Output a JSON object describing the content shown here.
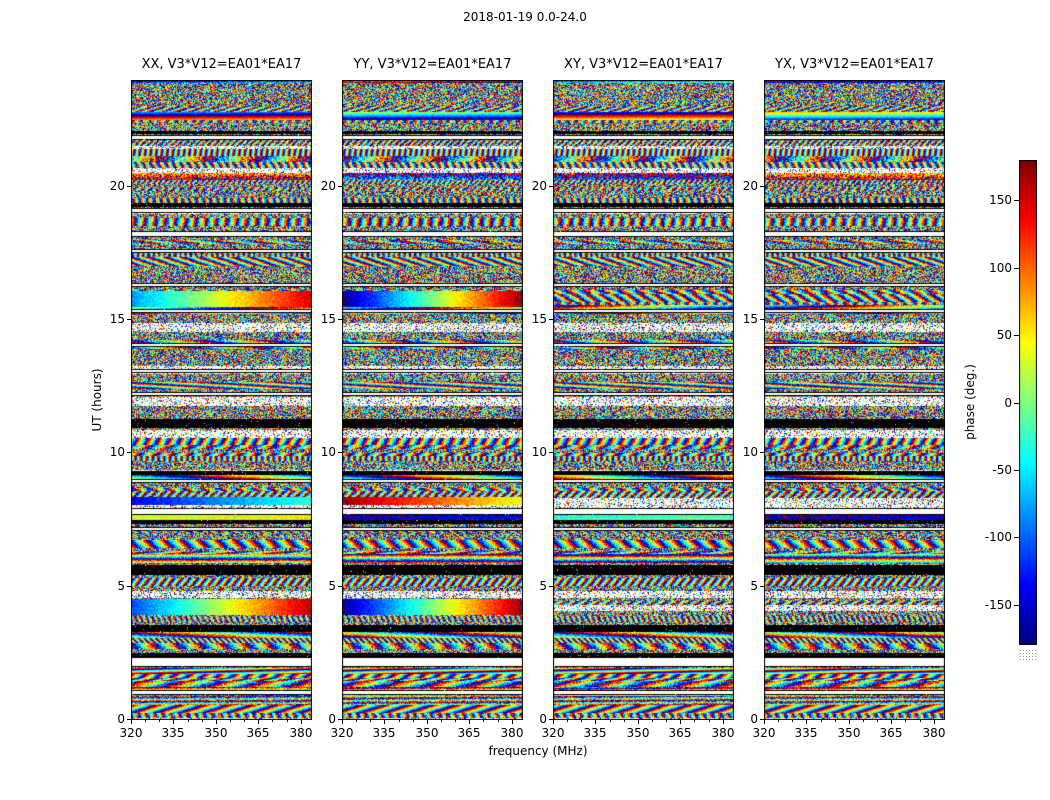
{
  "chart_data": {
    "type": "heatmap",
    "title": "2018-01-19 0.0-24.0",
    "xlabel": "frequency (MHz)",
    "ylabel": "UT (hours)",
    "value_kind": "interferometric visibility phase per time/frequency pixel, wrapped to [-180,180] deg; white rows = flagged gaps, black rows = dark flagged bands",
    "panels": [
      {
        "title": "XX, V3*V12=EA01*EA17",
        "seed": 11
      },
      {
        "title": "YY, V3*V12=EA01*EA17",
        "seed": 29
      },
      {
        "title": "XY, V3*V12=EA01*EA17",
        "seed": 47
      },
      {
        "title": "YX, V3*V12=EA01*EA17",
        "seed": 68
      }
    ],
    "x_axis": {
      "min": 320,
      "max": 384,
      "major_ticks": [
        320,
        335,
        350,
        365,
        380
      ],
      "minor_step": 5
    },
    "y_axis": {
      "min": 0,
      "max": 24,
      "major_ticks": [
        0,
        5,
        10,
        15,
        20
      ]
    },
    "colorbar": {
      "label": "phase (deg.)",
      "min": -180,
      "max": 180,
      "ticks": [
        150,
        100,
        50,
        0,
        -50,
        -100,
        -150
      ],
      "colormap": "jet"
    },
    "structure_seed": 7,
    "bands": [
      {
        "from": 0.95,
        "to": 1.12,
        "type": "white"
      },
      {
        "from": 2.0,
        "to": 2.35,
        "type": "white"
      },
      {
        "from": 2.38,
        "to": 2.52,
        "type": "black"
      },
      {
        "from": 3.3,
        "to": 3.55,
        "type": "black"
      },
      {
        "from": 3.95,
        "to": 4.55,
        "type": "smooth",
        "ramps": [
          [
            -110,
            160
          ],
          [
            -170,
            170
          ],
          null,
          null
        ]
      },
      {
        "from": 5.45,
        "to": 5.8,
        "type": "black"
      },
      {
        "from": 7.1,
        "to": 7.25,
        "type": "white"
      },
      {
        "from": 7.35,
        "to": 7.5,
        "type": "black"
      },
      {
        "from": 7.7,
        "to": 7.95,
        "type": "white"
      },
      {
        "from": 8.05,
        "to": 8.35,
        "type": "smooth",
        "ramps": [
          [
            -140,
            -30
          ],
          [
            170,
            40
          ],
          null,
          null
        ]
      },
      {
        "from": 8.9,
        "to": 9.05,
        "type": "white"
      },
      {
        "from": 9.2,
        "to": 9.35,
        "type": "black"
      },
      {
        "from": 10.95,
        "to": 11.3,
        "type": "black"
      },
      {
        "from": 12.15,
        "to": 12.3,
        "type": "white"
      },
      {
        "from": 13.0,
        "to": 13.15,
        "type": "white"
      },
      {
        "from": 14.0,
        "to": 14.15,
        "type": "white"
      },
      {
        "from": 15.25,
        "to": 15.4,
        "type": "white"
      },
      {
        "from": 15.5,
        "to": 16.1,
        "type": "smooth",
        "ramps": [
          [
            -80,
            150
          ],
          [
            -175,
            175
          ],
          null,
          null
        ]
      },
      {
        "from": 16.25,
        "to": 16.4,
        "type": "white"
      },
      {
        "from": 17.5,
        "to": 17.65,
        "type": "white"
      },
      {
        "from": 18.1,
        "to": 18.35,
        "type": "white"
      },
      {
        "from": 19.0,
        "to": 19.2,
        "type": "white"
      },
      {
        "from": 19.25,
        "to": 19.4,
        "type": "black"
      },
      {
        "from": 21.75,
        "to": 21.95,
        "type": "white"
      },
      {
        "from": 21.98,
        "to": 22.08,
        "type": "black"
      }
    ]
  }
}
